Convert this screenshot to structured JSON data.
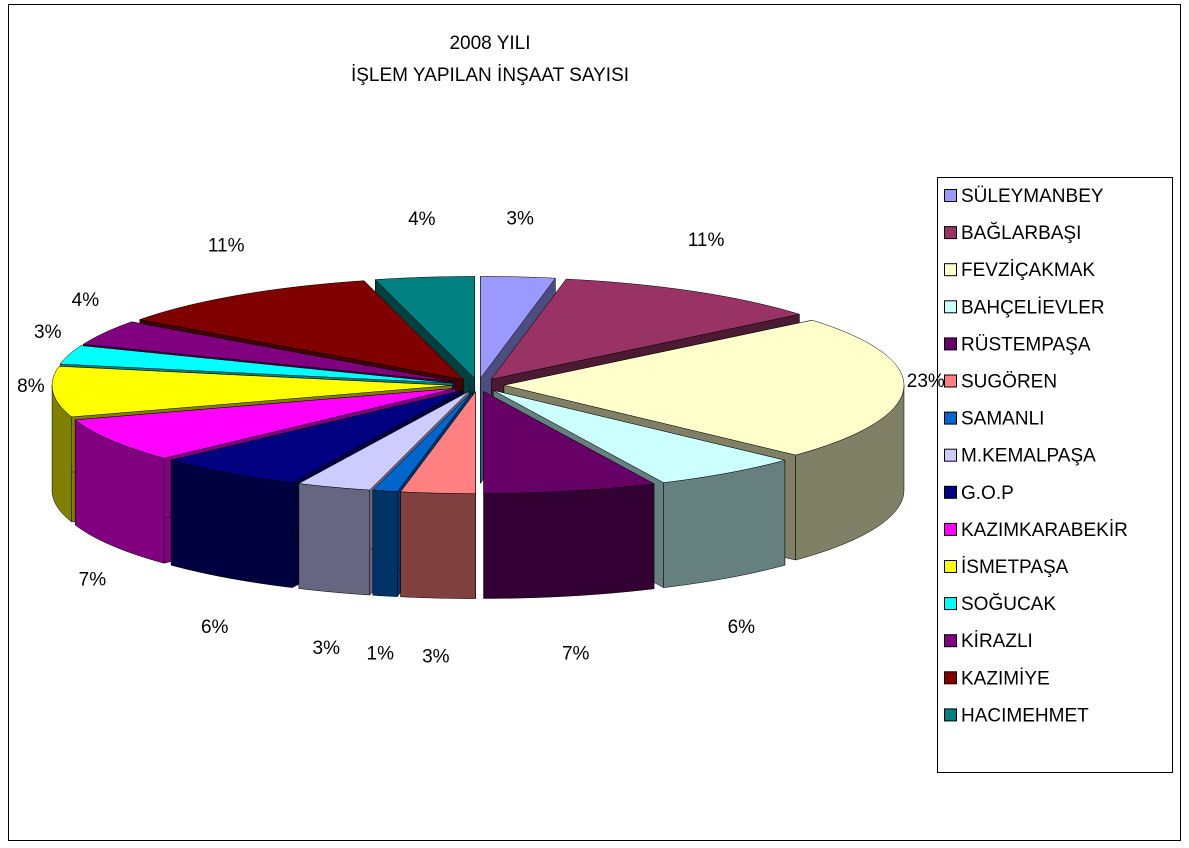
{
  "chart_data": {
    "type": "pie3d",
    "title": "2008 YILI",
    "subtitle": "İŞLEM YAPILAN İNŞAAT SAYISI",
    "categories": [
      "SÜLEYMANBEY",
      "BAĞLARBAŞI",
      "FEVZİÇAKMAK",
      "BAHÇELİEVLER",
      "RÜSTEMPAŞA",
      "SUGÖREN",
      "SAMANLI",
      "M.KEMALPAŞA",
      "G.O.P",
      "KAZIMKARABEKİR",
      "İSMETPAŞA",
      "SOĞUCAK",
      "KİRAZLI",
      "KAZIMİYE",
      "HACIMEHMET"
    ],
    "values": [
      3,
      11,
      23,
      6,
      7,
      3,
      1,
      3,
      6,
      7,
      8,
      3,
      4,
      11,
      4
    ],
    "value_labels": [
      "3%",
      "11%",
      "23%",
      "6%",
      "7%",
      "3%",
      "1%",
      "3%",
      "6%",
      "7%",
      "8%",
      "3%",
      "4%",
      "11%",
      "4%"
    ],
    "colors": [
      "#9999ff",
      "#993366",
      "#ffffcc",
      "#ccffff",
      "#660066",
      "#ff8080",
      "#0066cc",
      "#ccccff",
      "#000080",
      "#ff00ff",
      "#ffff00",
      "#00ffff",
      "#800080",
      "#800000",
      "#008080"
    ],
    "legend": "right"
  }
}
